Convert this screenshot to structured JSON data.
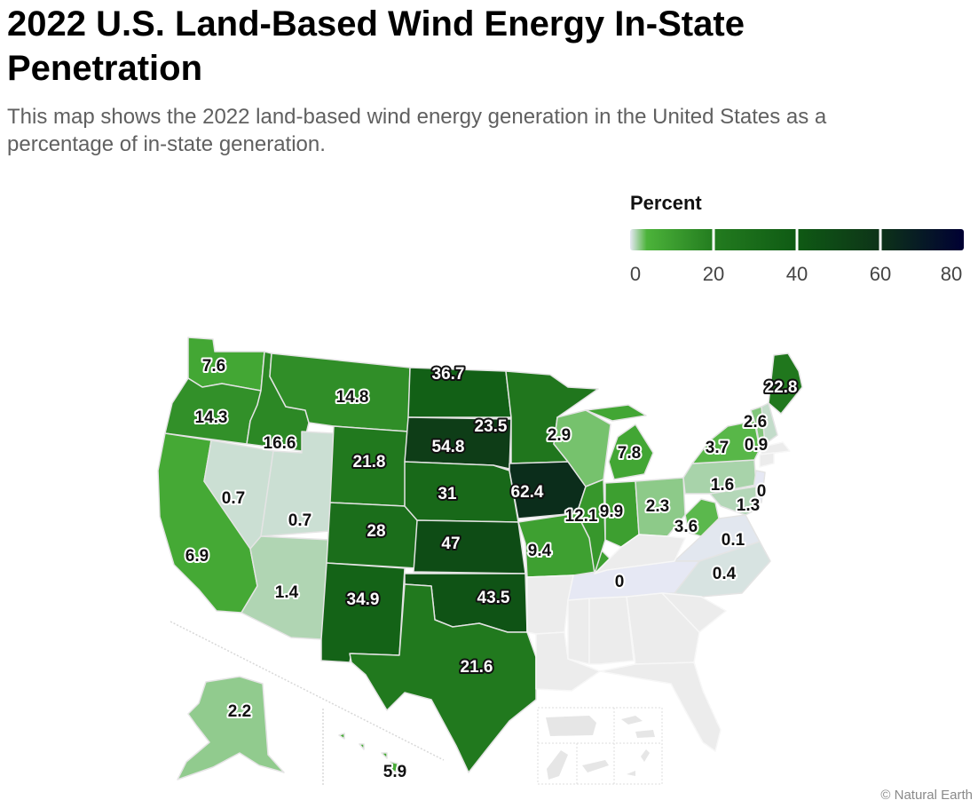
{
  "header": {
    "title": "2022 U.S. Land-Based Wind Energy In-State Penetration",
    "subtitle": "This map shows the 2022 land-based wind energy generation in the United States as a percentage of in-state generation."
  },
  "legend": {
    "title": "Percent",
    "ticks": [
      "0",
      "20",
      "40",
      "60",
      "80"
    ],
    "min": 0,
    "max": 80,
    "colors": {
      "stop_0": "#e6e8f4",
      "stop_4": "#4cb33a",
      "stop_20": "#237c1f",
      "stop_40": "#0f5a14",
      "stop_60": "#0d3318",
      "stop_80": "#000033",
      "no_data": "#ececec"
    }
  },
  "credit": "© Natural Earth",
  "chart_data": {
    "type": "choropleth",
    "title": "2022 U.S. Land-Based Wind Energy In-State Penetration",
    "value_label": "Percent",
    "range": [
      0,
      80
    ],
    "states": [
      {
        "state": "Washington",
        "abbr": "WA",
        "value": 7.6
      },
      {
        "state": "Oregon",
        "abbr": "OR",
        "value": 14.3
      },
      {
        "state": "California",
        "abbr": "CA",
        "value": 6.9
      },
      {
        "state": "Nevada",
        "abbr": "NV",
        "value": 0.7
      },
      {
        "state": "Idaho",
        "abbr": "ID",
        "value": 16.6
      },
      {
        "state": "Utah",
        "abbr": "UT",
        "value": 0.7
      },
      {
        "state": "Arizona",
        "abbr": "AZ",
        "value": 1.4
      },
      {
        "state": "Montana",
        "abbr": "MT",
        "value": 14.8
      },
      {
        "state": "Wyoming",
        "abbr": "WY",
        "value": 21.8
      },
      {
        "state": "Colorado",
        "abbr": "CO",
        "value": 28
      },
      {
        "state": "New Mexico",
        "abbr": "NM",
        "value": 34.9
      },
      {
        "state": "North Dakota",
        "abbr": "ND",
        "value": 36.7
      },
      {
        "state": "South Dakota",
        "abbr": "SD",
        "value": 54.8
      },
      {
        "state": "Nebraska",
        "abbr": "NE",
        "value": 31
      },
      {
        "state": "Kansas",
        "abbr": "KS",
        "value": 47
      },
      {
        "state": "Oklahoma",
        "abbr": "OK",
        "value": 43.5
      },
      {
        "state": "Texas",
        "abbr": "TX",
        "value": 21.6
      },
      {
        "state": "Minnesota",
        "abbr": "MN",
        "value": 23.5
      },
      {
        "state": "Iowa",
        "abbr": "IA",
        "value": 62.4
      },
      {
        "state": "Missouri",
        "abbr": "MO",
        "value": 9.4
      },
      {
        "state": "Wisconsin",
        "abbr": "WI",
        "value": 2.9
      },
      {
        "state": "Illinois",
        "abbr": "IL",
        "value": 12.1
      },
      {
        "state": "Michigan",
        "abbr": "MI",
        "value": 7.8
      },
      {
        "state": "Indiana",
        "abbr": "IN",
        "value": 9.9
      },
      {
        "state": "Ohio",
        "abbr": "OH",
        "value": 2.3
      },
      {
        "state": "West Virginia",
        "abbr": "WV",
        "value": 3.6
      },
      {
        "state": "Pennsylvania",
        "abbr": "PA",
        "value": 1.6
      },
      {
        "state": "New York",
        "abbr": "NY",
        "value": 3.7
      },
      {
        "state": "Vermont",
        "abbr": "VT",
        "value": 2.6
      },
      {
        "state": "New Hampshire",
        "abbr": "NH",
        "value": 0.9
      },
      {
        "state": "Maine",
        "abbr": "ME",
        "value": 22.8
      },
      {
        "state": "New Jersey",
        "abbr": "NJ",
        "value": 0
      },
      {
        "state": "Maryland",
        "abbr": "MD",
        "value": 1.3
      },
      {
        "state": "Virginia",
        "abbr": "VA",
        "value": 0.1
      },
      {
        "state": "North Carolina",
        "abbr": "NC",
        "value": 0.4
      },
      {
        "state": "Tennessee",
        "abbr": "TN",
        "value": 0
      },
      {
        "state": "Alaska",
        "abbr": "AK",
        "value": 2.2
      },
      {
        "state": "Hawaii",
        "abbr": "HI",
        "value": 5.9
      },
      {
        "state": "Arkansas",
        "abbr": "AR",
        "value": null
      },
      {
        "state": "Louisiana",
        "abbr": "LA",
        "value": null
      },
      {
        "state": "Mississippi",
        "abbr": "MS",
        "value": null
      },
      {
        "state": "Alabama",
        "abbr": "AL",
        "value": null
      },
      {
        "state": "Georgia",
        "abbr": "GA",
        "value": null
      },
      {
        "state": "South Carolina",
        "abbr": "SC",
        "value": null
      },
      {
        "state": "Florida",
        "abbr": "FL",
        "value": null
      },
      {
        "state": "Kentucky",
        "abbr": "KY",
        "value": null
      },
      {
        "state": "Massachusetts",
        "abbr": "MA",
        "value": null
      },
      {
        "state": "Connecticut",
        "abbr": "CT",
        "value": null
      },
      {
        "state": "Rhode Island",
        "abbr": "RI",
        "value": null
      },
      {
        "state": "Delaware",
        "abbr": "DE",
        "value": null
      }
    ]
  }
}
